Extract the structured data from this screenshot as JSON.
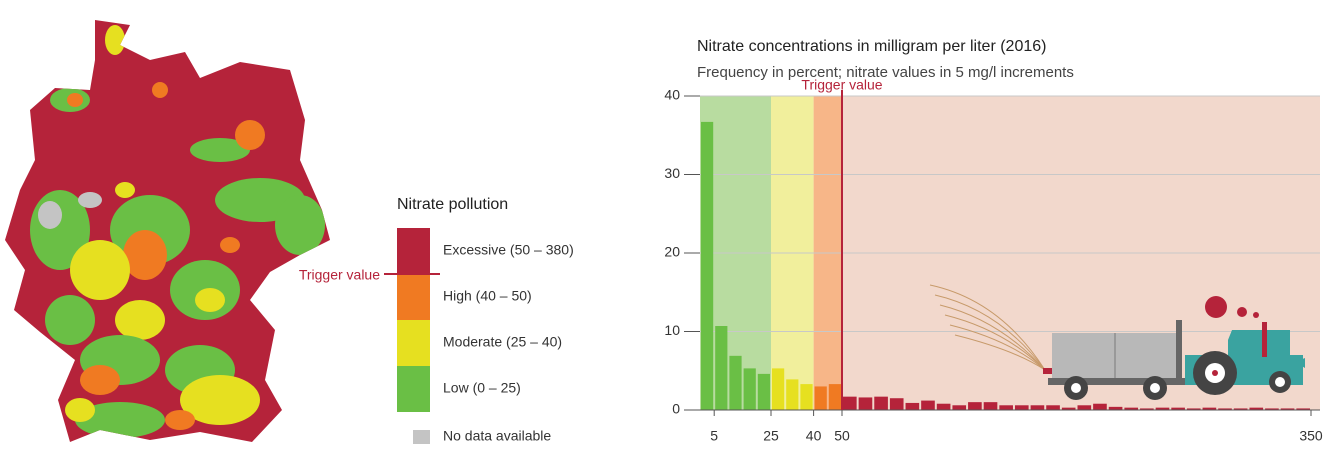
{
  "chart_data": {
    "type": "histogram",
    "title": "Nitrate concentrations in milligram per liter (2016)",
    "subtitle": "Frequency in percent; nitrate values in 5 mg/l increments",
    "bins": [
      0,
      5,
      10,
      15,
      20,
      25,
      30,
      35,
      40,
      45,
      50,
      60,
      70,
      80,
      90,
      100,
      110,
      120,
      130,
      140,
      150,
      160,
      170,
      180,
      190,
      200,
      210,
      220,
      230,
      240,
      250,
      260,
      270,
      280,
      290,
      300,
      310,
      320,
      330,
      340,
      350
    ],
    "counts": [
      36.7,
      10.7,
      6.9,
      5.3,
      4.6,
      5.3,
      3.9,
      3.3,
      3.0,
      3.3,
      1.7,
      1.6,
      1.7,
      1.5,
      0.9,
      1.2,
      0.8,
      0.6,
      1.0,
      1.0,
      0.6,
      0.6,
      0.6,
      0.6,
      0.3,
      0.6,
      0.8,
      0.4,
      0.3,
      0.2,
      0.3,
      0.3,
      0.2,
      0.3,
      0.2,
      0.2,
      0.3,
      0.2,
      0.2,
      0.2
    ],
    "zones": [
      {
        "from": 0,
        "to": 25,
        "color": "#6abf45",
        "background": "#b8dca0"
      },
      {
        "from": 25,
        "to": 40,
        "color": "#e6e020",
        "background": "#f1ef9c"
      },
      {
        "from": 40,
        "to": 50,
        "color": "#f07a22",
        "background": "#f7b688"
      },
      {
        "from": 50,
        "to": 350,
        "color": "#b5233a",
        "background": "#f2d8cc"
      }
    ],
    "annotation": {
      "text": "Trigger value",
      "x": 50,
      "color": "#b5233a"
    },
    "xlim": [
      0,
      350
    ],
    "xticks": [
      5,
      25,
      40,
      50,
      350
    ],
    "ylim": [
      0,
      40
    ],
    "yticks": [
      0,
      10,
      20,
      30,
      40
    ],
    "grid": true
  },
  "map_legend": {
    "title": "Nitrate pollution",
    "trigger_label": "Trigger value",
    "items": [
      {
        "label": "Excessive (50 – 380)",
        "color": "#b5233a"
      },
      {
        "label": "High (40 – 50)",
        "color": "#f07a22"
      },
      {
        "label": "Moderate (25 – 40)",
        "color": "#e6e020"
      },
      {
        "label": "Low (0 – 25)",
        "color": "#6abf45"
      },
      {
        "label": "No data available",
        "color": "#c4c4c4"
      }
    ]
  }
}
